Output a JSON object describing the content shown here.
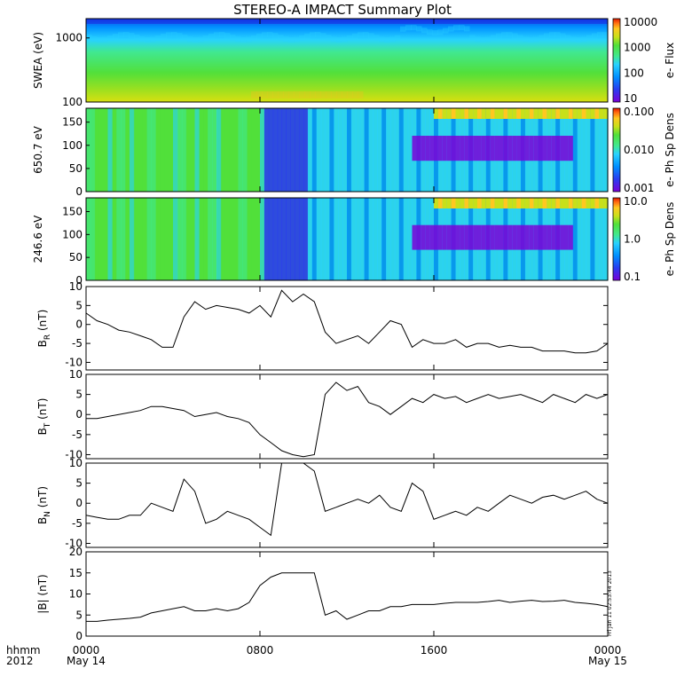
{
  "title": "STEREO-A IMPACT Summary Plot",
  "footer": {
    "x_label_line1": "hhmm",
    "x_label_line2": "2012",
    "timestamp": "Fri Jan 11 02:53:44 2013"
  },
  "colors": {
    "line": "#000000",
    "colormap": [
      "#7a00d8",
      "#2a3cf0",
      "#0090ff",
      "#28d2ff",
      "#40e890",
      "#52e03a",
      "#c8e01a",
      "#ffc820",
      "#ff6a10",
      "#e01800"
    ]
  },
  "chart_data": [
    {
      "type": "heatmap",
      "id": "swea",
      "ylabel": "SWEA (eV)",
      "yscale": "log",
      "ylim": [
        100,
        2000
      ],
      "yticks": [
        "100",
        "1000"
      ],
      "colorbar": {
        "label": "e- Flux",
        "scale": "log",
        "ticks": [
          "10",
          "100",
          "1000",
          "10000"
        ]
      }
    },
    {
      "type": "heatmap",
      "id": "pad650",
      "ylabel": "650.7 eV",
      "ylim": [
        0,
        180
      ],
      "yticks": [
        "0",
        "50",
        "100",
        "150"
      ],
      "colorbar": {
        "label": "e- Ph Sp Dens",
        "scale": "log",
        "ticks": [
          "0.001",
          "0.010",
          "0.100"
        ]
      }
    },
    {
      "type": "heatmap",
      "id": "pad246",
      "ylabel": "246.6 eV",
      "ylim": [
        0,
        180
      ],
      "yticks": [
        "0",
        "50",
        "100",
        "150"
      ],
      "colorbar": {
        "label": "e- Ph Sp Dens",
        "scale": "log",
        "ticks": [
          "0.1",
          "1.0",
          "10.0"
        ]
      }
    },
    {
      "type": "line",
      "id": "br",
      "ylabel": "B",
      "ysub": "R",
      "yunit": "(nT)",
      "ylim": [
        -12,
        10
      ],
      "yticks": [
        "-10",
        "-5",
        "0",
        "5",
        "10"
      ],
      "x": [
        0,
        0.5,
        1,
        1.5,
        2,
        2.5,
        3,
        3.5,
        4,
        4.5,
        5,
        5.5,
        6,
        6.5,
        7,
        7.5,
        8,
        8.5,
        9,
        9.5,
        10,
        10.5,
        11,
        11.5,
        12,
        12.5,
        13,
        13.5,
        14,
        14.5,
        15,
        15.5,
        16,
        16.5,
        17,
        17.5,
        18,
        18.5,
        19,
        19.5,
        20,
        20.5,
        21,
        21.5,
        22,
        22.5,
        23,
        23.5,
        24
      ],
      "y": [
        3,
        1,
        0,
        -1.5,
        -2,
        -3,
        -4,
        -6,
        -6,
        2,
        6,
        4,
        5,
        4.5,
        4,
        3,
        5,
        2,
        9,
        6,
        8,
        6,
        -2,
        -5,
        -4,
        -3,
        -5,
        -2,
        1,
        0,
        -6,
        -4,
        -5,
        -5,
        -4,
        -6,
        -5,
        -5,
        -6,
        -5.5,
        -6,
        -6,
        -7,
        -7,
        -7,
        -7.5,
        -7.5,
        -7,
        -5
      ],
      "mark_label": "0800"
    },
    {
      "type": "line",
      "id": "bt",
      "ylabel": "B",
      "ysub": "T",
      "yunit": "(nT)",
      "ylim": [
        -11,
        10
      ],
      "yticks": [
        "-10",
        "-5",
        "0",
        "5",
        "10"
      ],
      "x": [
        0,
        0.5,
        1,
        1.5,
        2,
        2.5,
        3,
        3.5,
        4,
        4.5,
        5,
        5.5,
        6,
        6.5,
        7,
        7.5,
        8,
        8.5,
        9,
        9.5,
        10,
        10.5,
        11,
        11.5,
        12,
        12.5,
        13,
        13.5,
        14,
        14.5,
        15,
        15.5,
        16,
        16.5,
        17,
        17.5,
        18,
        18.5,
        19,
        19.5,
        20,
        20.5,
        21,
        21.5,
        22,
        22.5,
        23,
        23.5,
        24
      ],
      "y": [
        -1,
        -1,
        -0.5,
        0,
        0.5,
        1,
        2,
        2,
        1.5,
        1,
        -0.5,
        0,
        0.5,
        -0.5,
        -1,
        -2,
        -5,
        -7,
        -9,
        -10,
        -10.5,
        -10,
        5,
        8,
        6,
        7,
        3,
        2,
        0,
        2,
        4,
        3,
        5,
        4,
        4.5,
        3,
        4,
        5,
        4,
        4.5,
        5,
        4,
        3,
        5,
        4,
        3,
        5,
        4,
        5
      ],
      "mark_label": ""
    },
    {
      "type": "line",
      "id": "bn",
      "ylabel": "B",
      "ysub": "N",
      "yunit": "(nT)",
      "ylim": [
        -11,
        10
      ],
      "yticks": [
        "-10",
        "-5",
        "0",
        "5",
        "10"
      ],
      "x": [
        0,
        0.5,
        1,
        1.5,
        2,
        2.5,
        3,
        3.5,
        4,
        4.5,
        5,
        5.5,
        6,
        6.5,
        7,
        7.5,
        8,
        8.5,
        9,
        9.5,
        10,
        10.5,
        11,
        11.5,
        12,
        12.5,
        13,
        13.5,
        14,
        14.5,
        15,
        15.5,
        16,
        16.5,
        17,
        17.5,
        18,
        18.5,
        19,
        19.5,
        20,
        20.5,
        21,
        21.5,
        22,
        22.5,
        23,
        23.5,
        24
      ],
      "y": [
        -3,
        -3.5,
        -4,
        -4,
        -3,
        -3,
        0,
        -1,
        -2,
        6,
        3,
        -5,
        -4,
        -2,
        -3,
        -4,
        -6,
        -8,
        10,
        10,
        10,
        8,
        -2,
        -1,
        0,
        1,
        0,
        2,
        -1,
        -2,
        5,
        3,
        -4,
        -3,
        -2,
        -3,
        -1,
        -2,
        0,
        2,
        1,
        0,
        1.5,
        2,
        1,
        2,
        3,
        1,
        0
      ],
      "mark_label": ""
    },
    {
      "type": "line",
      "id": "bmag",
      "ylabel": "|B|",
      "ysub": "",
      "yunit": "(nT)",
      "ylim": [
        0,
        20
      ],
      "yticks": [
        "0",
        "5",
        "10",
        "15",
        "20"
      ],
      "x": [
        0,
        0.5,
        1,
        1.5,
        2,
        2.5,
        3,
        3.5,
        4,
        4.5,
        5,
        5.5,
        6,
        6.5,
        7,
        7.5,
        8,
        8.5,
        9,
        9.5,
        10,
        10.5,
        11,
        11.5,
        12,
        12.5,
        13,
        13.5,
        14,
        14.5,
        15,
        15.5,
        16,
        16.5,
        17,
        17.5,
        18,
        18.5,
        19,
        19.5,
        20,
        20.5,
        21,
        21.5,
        22,
        22.5,
        23,
        23.5,
        24
      ],
      "y": [
        3.5,
        3.5,
        3.8,
        4,
        4.2,
        4.5,
        5.5,
        6,
        6.5,
        7,
        6,
        6,
        6.5,
        6,
        6.5,
        8,
        12,
        14,
        15,
        15,
        15,
        15,
        5,
        6,
        4,
        5,
        6,
        6,
        7,
        7,
        7.5,
        7.5,
        7.5,
        7.8,
        8,
        8,
        8,
        8.2,
        8.5,
        8,
        8.3,
        8.5,
        8.2,
        8.3,
        8.5,
        8,
        7.8,
        7.5,
        7
      ],
      "mark_label": ""
    }
  ],
  "xaxis": {
    "ticks": [
      "0000",
      "0800",
      "1600",
      "0000"
    ],
    "dates": [
      "May 14",
      "",
      "",
      "May 15"
    ],
    "xlim": [
      0,
      24
    ]
  }
}
